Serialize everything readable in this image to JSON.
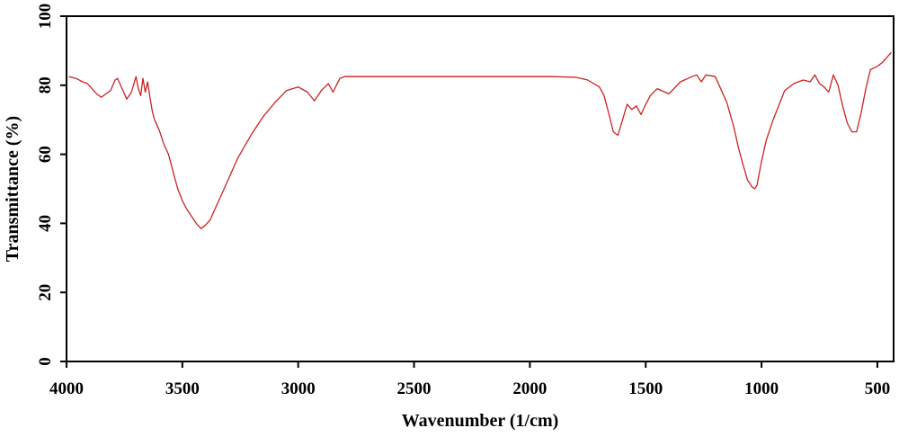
{
  "chart_data": {
    "type": "line",
    "xlabel": "Wavenumber (1/cm)",
    "ylabel": "Transmittance (%)",
    "xlim": [
      4000,
      430
    ],
    "ylim": [
      0,
      100
    ],
    "x_reversed": true,
    "x_ticks": [
      4000,
      3500,
      3000,
      2500,
      2000,
      1500,
      1000,
      500
    ],
    "y_ticks": [
      0,
      20,
      40,
      60,
      80,
      100
    ],
    "grid": false,
    "legend": "none",
    "line_color": "#cc2222",
    "series": [
      {
        "x": [
          3990,
          3960,
          3930,
          3910,
          3890,
          3870,
          3850,
          3830,
          3810,
          3790,
          3780,
          3760,
          3740,
          3720,
          3700,
          3690,
          3680,
          3670,
          3660,
          3650,
          3640,
          3630,
          3620,
          3600,
          3580,
          3560,
          3540,
          3520,
          3500,
          3480,
          3460,
          3440,
          3420,
          3400,
          3380,
          3360,
          3340,
          3300,
          3260,
          3200,
          3150,
          3100,
          3050,
          3000,
          2960,
          2930,
          2900,
          2870,
          2850,
          2820,
          2800,
          2700,
          2600,
          2500,
          2400,
          2300,
          2200,
          2100,
          2000,
          1900,
          1800,
          1750,
          1700,
          1680,
          1660,
          1640,
          1620,
          1600,
          1580,
          1560,
          1540,
          1520,
          1500,
          1480,
          1450,
          1400,
          1350,
          1300,
          1280,
          1260,
          1240,
          1200,
          1150,
          1120,
          1100,
          1080,
          1060,
          1040,
          1030,
          1020,
          1000,
          980,
          950,
          900,
          860,
          820,
          790,
          770,
          750,
          730,
          710,
          690,
          670,
          650,
          630,
          610,
          590,
          570,
          550,
          530,
          500,
          480,
          460,
          440
        ],
        "y": [
          82.5,
          82,
          81,
          80.5,
          79,
          77.5,
          76.5,
          77.5,
          78.5,
          81.5,
          82,
          79,
          76,
          78,
          82.5,
          79,
          77,
          82,
          78,
          81,
          76.5,
          72.5,
          70,
          67,
          63,
          60,
          55,
          50,
          46.5,
          44,
          42,
          40,
          38.5,
          39.5,
          41,
          44,
          47,
          53,
          59,
          66,
          71,
          75,
          78.5,
          79.5,
          78,
          75.5,
          78.5,
          80.5,
          78,
          82,
          82.5,
          82.5,
          82.5,
          82.5,
          82.5,
          82.5,
          82.5,
          82.5,
          82.5,
          82.5,
          82.3,
          81.5,
          79.5,
          77,
          72,
          66.5,
          65.5,
          70,
          74.5,
          73,
          74,
          71.5,
          74.5,
          77,
          79,
          77.5,
          81,
          82.5,
          83,
          81,
          83,
          82.5,
          75,
          68,
          62,
          57,
          52.5,
          50.5,
          50,
          51,
          58,
          64,
          70,
          78.5,
          80.5,
          81.5,
          81,
          83,
          80.5,
          79.5,
          78,
          83,
          80,
          74,
          69,
          66.5,
          66.5,
          72,
          79,
          84.5,
          85.5,
          86.5,
          88,
          89.5
        ]
      }
    ]
  }
}
